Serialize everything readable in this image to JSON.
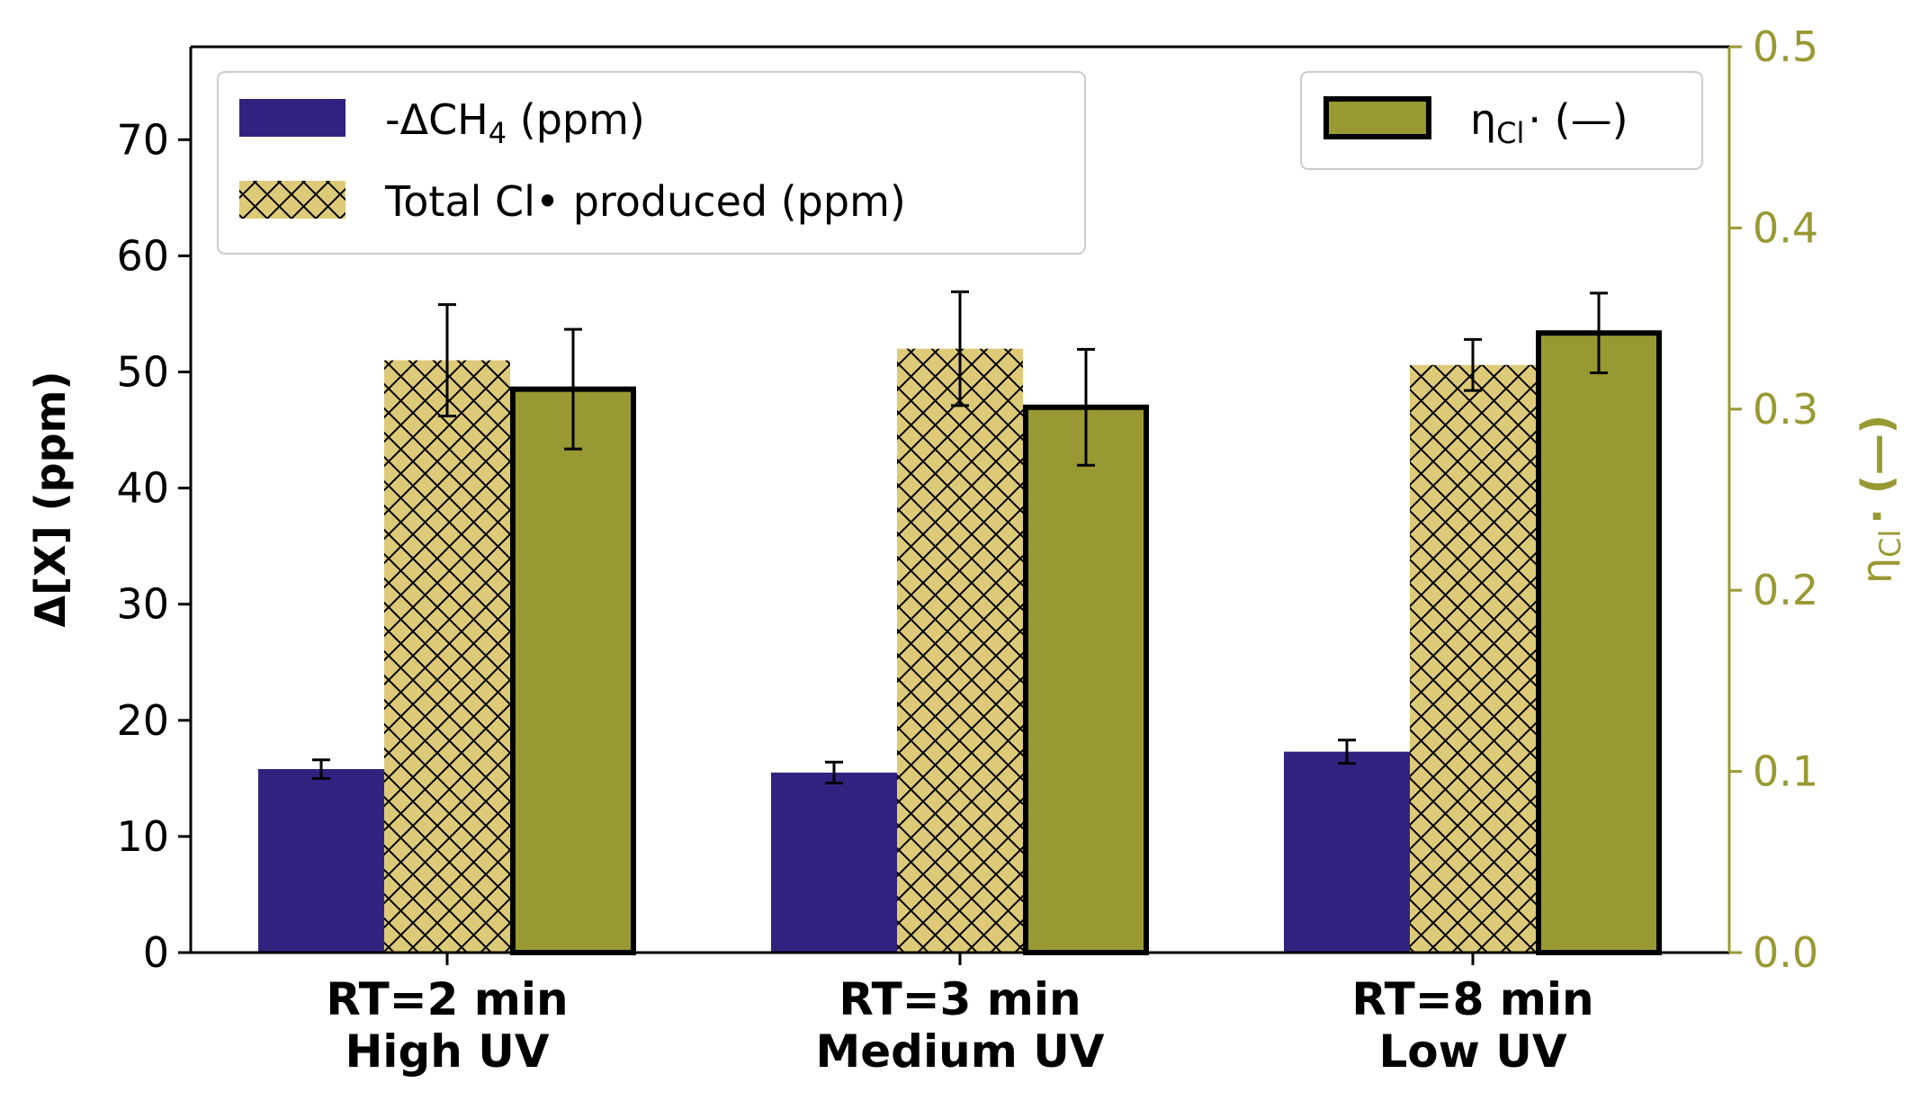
{
  "chart_data": {
    "type": "bar",
    "categories": [
      [
        "RT=2 min",
        "High UV"
      ],
      [
        "RT=3 min",
        "Medium UV"
      ],
      [
        "RT=8 min",
        "Low UV"
      ]
    ],
    "ylabel": "Δ[X] (ppm)",
    "ylim": [
      0,
      78
    ],
    "yticks": [
      0,
      10,
      20,
      30,
      40,
      50,
      60,
      70
    ],
    "y2label": {
      "main": "η",
      "sub": "Cl",
      "rest": "· (—)"
    },
    "y2lim": [
      0,
      0.5
    ],
    "y2ticks": [
      "0.0",
      "0.1",
      "0.2",
      "0.3",
      "0.4",
      "0.5"
    ],
    "series": [
      {
        "name": "-ΔCH₄ (ppm)",
        "legend": {
          "pre": "-ΔCH",
          "sub": "4",
          "post": " (ppm)"
        },
        "axis": "left",
        "values": [
          15.8,
          15.5,
          17.3
        ],
        "errors": [
          0.8,
          0.9,
          1.0
        ],
        "color": "#32227f",
        "style": "solid"
      },
      {
        "name": "Total Cl• produced (ppm)",
        "legend": {
          "pre": "Total Cl• produced (ppm)",
          "sub": "",
          "post": ""
        },
        "axis": "left",
        "values": [
          51.0,
          52.0,
          50.6
        ],
        "errors": [
          4.8,
          4.9,
          2.2
        ],
        "color": "#ddca78",
        "style": "crosshatch"
      },
      {
        "name": "ηCl· (—)",
        "legend": {
          "pre": "η",
          "sub": "Cl",
          "post": "· (—)"
        },
        "axis": "right",
        "values": [
          0.311,
          0.301,
          0.342
        ],
        "errors": [
          0.033,
          0.032,
          0.022
        ],
        "color": "#999933",
        "style": "outlined"
      }
    ],
    "legend_placement": [
      "upper-left",
      "upper-right"
    ],
    "grid": false
  }
}
